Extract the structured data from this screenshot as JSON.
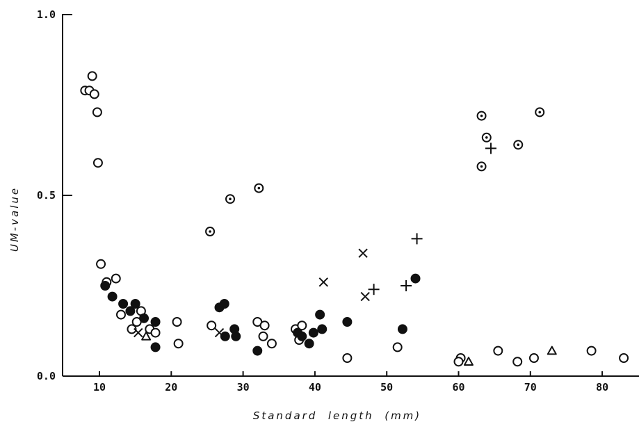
{
  "chart_data": {
    "type": "scatter",
    "xlabel": "Standard  length  (mm)",
    "ylabel": "UM-value",
    "xlim": [
      5,
      85
    ],
    "ylim": [
      0,
      1
    ],
    "x_ticks": [
      {
        "value": 10,
        "label": "10"
      },
      {
        "value": 20,
        "label": "20"
      },
      {
        "value": 30,
        "label": "30"
      },
      {
        "value": 40,
        "label": "40"
      },
      {
        "value": 50,
        "label": "50"
      },
      {
        "value": 60,
        "label": "60"
      },
      {
        "value": 70,
        "label": "70"
      },
      {
        "value": 80,
        "label": "80"
      }
    ],
    "y_ticks": [
      {
        "value": 0,
        "label": "0.0"
      },
      {
        "value": 0.5,
        "label": "0.5"
      },
      {
        "value": 1,
        "label": "1.0"
      }
    ],
    "grid": false,
    "legend": "none",
    "series": [
      {
        "marker": "open-circle",
        "points": [
          [
            8.0,
            0.79
          ],
          [
            8.6,
            0.79
          ],
          [
            9.0,
            0.83
          ],
          [
            9.3,
            0.78
          ],
          [
            9.7,
            0.73
          ],
          [
            9.8,
            0.59
          ],
          [
            10.2,
            0.31
          ],
          [
            11.0,
            0.26
          ],
          [
            12.3,
            0.27
          ],
          [
            13.0,
            0.17
          ],
          [
            14.5,
            0.13
          ],
          [
            15.2,
            0.15
          ],
          [
            15.8,
            0.18
          ],
          [
            17.0,
            0.13
          ],
          [
            17.8,
            0.12
          ],
          [
            20.8,
            0.15
          ],
          [
            21.0,
            0.09
          ],
          [
            25.6,
            0.14
          ],
          [
            32.0,
            0.15
          ],
          [
            32.8,
            0.11
          ],
          [
            33.0,
            0.14
          ],
          [
            34.0,
            0.09
          ],
          [
            37.3,
            0.13
          ],
          [
            37.8,
            0.1
          ],
          [
            38.2,
            0.14
          ],
          [
            44.5,
            0.05
          ],
          [
            51.5,
            0.08
          ],
          [
            60.3,
            0.05
          ],
          [
            60.0,
            0.04
          ],
          [
            65.5,
            0.07
          ],
          [
            68.2,
            0.04
          ],
          [
            70.5,
            0.05
          ],
          [
            78.5,
            0.07
          ],
          [
            83.0,
            0.05
          ]
        ]
      },
      {
        "marker": "filled-circle",
        "points": [
          [
            10.8,
            0.25
          ],
          [
            11.8,
            0.22
          ],
          [
            13.3,
            0.2
          ],
          [
            14.3,
            0.18
          ],
          [
            15.0,
            0.2
          ],
          [
            16.2,
            0.16
          ],
          [
            17.8,
            0.15
          ],
          [
            17.8,
            0.08
          ],
          [
            26.7,
            0.19
          ],
          [
            27.4,
            0.2
          ],
          [
            27.5,
            0.11
          ],
          [
            28.8,
            0.13
          ],
          [
            29.0,
            0.11
          ],
          [
            32.0,
            0.07
          ],
          [
            37.6,
            0.12
          ],
          [
            38.2,
            0.11
          ],
          [
            39.2,
            0.09
          ],
          [
            39.8,
            0.12
          ],
          [
            40.7,
            0.17
          ],
          [
            41.0,
            0.13
          ],
          [
            44.5,
            0.15
          ],
          [
            52.2,
            0.13
          ],
          [
            54.0,
            0.27
          ]
        ]
      },
      {
        "marker": "dotted-circle",
        "points": [
          [
            25.4,
            0.4
          ],
          [
            28.2,
            0.49
          ],
          [
            32.2,
            0.52
          ],
          [
            63.2,
            0.72
          ],
          [
            63.2,
            0.58
          ],
          [
            63.9,
            0.66
          ],
          [
            68.3,
            0.64
          ],
          [
            71.3,
            0.73
          ]
        ]
      },
      {
        "marker": "cross",
        "points": [
          [
            15.4,
            0.12
          ],
          [
            26.7,
            0.12
          ],
          [
            41.2,
            0.26
          ],
          [
            46.7,
            0.34
          ],
          [
            47.0,
            0.22
          ]
        ]
      },
      {
        "marker": "plus",
        "points": [
          [
            48.2,
            0.24
          ],
          [
            52.7,
            0.25
          ],
          [
            54.2,
            0.38
          ],
          [
            64.5,
            0.63
          ]
        ]
      },
      {
        "marker": "triangle",
        "points": [
          [
            16.5,
            0.11
          ],
          [
            61.4,
            0.04
          ],
          [
            73.0,
            0.07
          ]
        ]
      }
    ]
  }
}
